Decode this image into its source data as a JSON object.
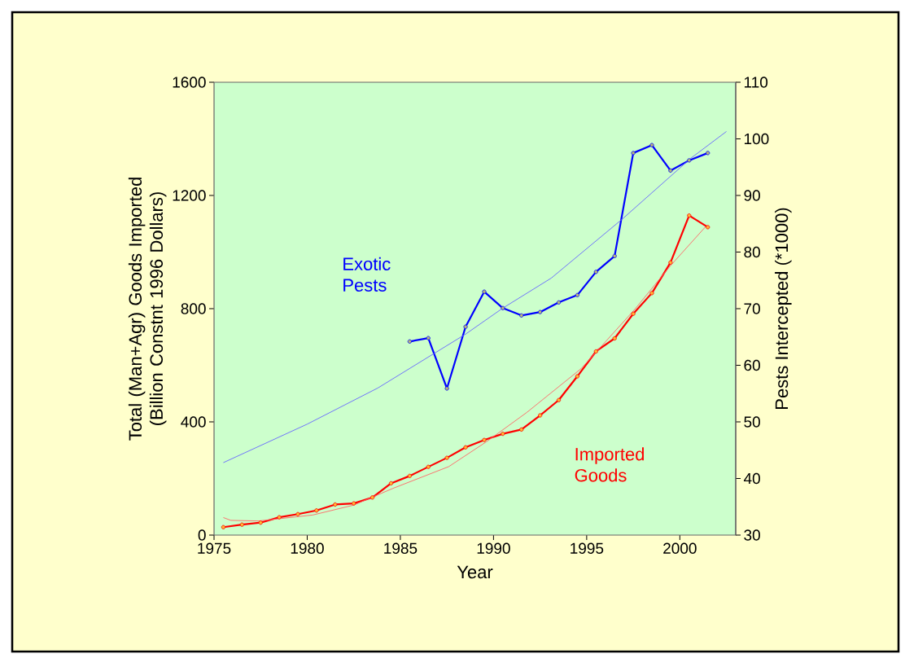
{
  "chart_data": {
    "type": "line",
    "xlabel": "Year",
    "ylabel": "Total (Man+Agr) Goods Imported (Billion Constnt 1996 Dollars)",
    "y2label": "Pests Intercepted (*1000)",
    "xlim": [
      1975,
      2003
    ],
    "xticks": [
      1975,
      1980,
      1985,
      1990,
      1995,
      2000
    ],
    "ylim": [
      0,
      1600
    ],
    "yticks": [
      0,
      400,
      800,
      1200,
      1600
    ],
    "y2lim": [
      30,
      110
    ],
    "y2ticks": [
      30,
      40,
      50,
      60,
      70,
      80,
      90,
      100,
      110
    ],
    "grid": false,
    "line_style": "solid",
    "series": [
      {
        "name": "Imported Goods",
        "color": "#ff0000",
        "marker": "circle",
        "x": [
          1975.5,
          1976.5,
          1977.5,
          1978.5,
          1979.5,
          1980.5,
          1981.5,
          1982.5,
          1983.5,
          1984.5,
          1985.5,
          1986.5,
          1987.5,
          1988.5,
          1989.5,
          1990.5,
          1991.5,
          1992.5,
          1993.5,
          1994.5,
          1995.5,
          1996.5,
          1997.5,
          1998.5,
          1999.5,
          2000.5,
          2001.5
        ],
        "values": [
          28,
          37,
          44,
          63,
          74,
          87,
          108,
          112,
          133,
          183,
          209,
          241,
          273,
          310,
          336,
          358,
          373,
          423,
          477,
          561,
          649,
          695,
          782,
          855,
          963,
          1129,
          1088
        ]
      },
      {
        "color": "#ff6666",
        "marker": "none",
        "x": [
          1975.5,
          1975.9,
          1977.4,
          1980.3,
          1982.5,
          1984.6,
          1987.6,
          1989.6,
          1991.8,
          1994.7,
          1997.6,
          1999.5,
          2001.4
        ],
        "values": [
          62,
          52,
          50,
          71,
          106,
          165,
          242,
          329,
          434,
          588,
          799,
          952,
          1091
        ]
      },
      {
        "name": "Exotic Pests",
        "axis": "y2",
        "color": "#0000ff",
        "marker": "circle",
        "x": [
          1985.5,
          1986.5,
          1987.5,
          1988.5,
          1989.5,
          1990.5,
          1991.5,
          1992.5,
          1993.5,
          1994.5,
          1995.5,
          1996.5,
          1997.5,
          1998.5,
          1999.5,
          2000.5,
          2001.5
        ],
        "values": [
          64.2,
          64.8,
          55.9,
          66.8,
          73.0,
          70.1,
          68.8,
          69.4,
          71.1,
          72.4,
          76.5,
          79.3,
          97.5,
          98.9,
          94.4,
          96.2,
          97.5
        ]
      },
      {
        "axis": "y2",
        "color": "#6666ff",
        "marker": "none",
        "x": [
          1975.5,
          1980,
          1983.8,
          1988.5,
          1990.5,
          1993.1,
          1996.9,
          2000.6,
          2002.5
        ],
        "values": [
          42.8,
          49.6,
          56.0,
          65.5,
          70.1,
          75.4,
          85.8,
          96.6,
          101.3
        ]
      }
    ]
  }
}
